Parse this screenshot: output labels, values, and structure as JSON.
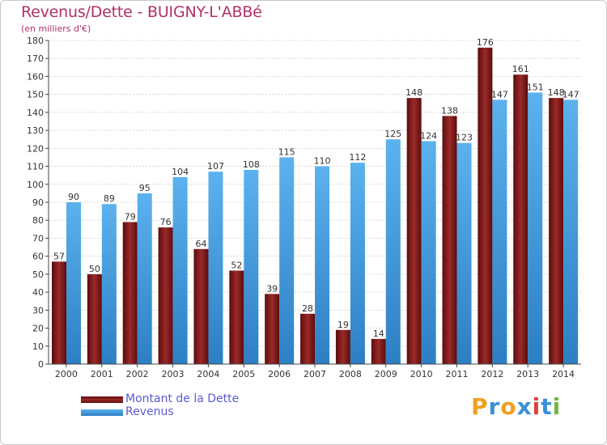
{
  "header": {
    "title": "Revenus/Dette - BUIGNY-L'ABBé",
    "subtitle": "(en milliers d'€)"
  },
  "legend": {
    "items": [
      {
        "label": "Montant de la Dette",
        "color": "#7a1a1a"
      },
      {
        "label": "Revenus",
        "color": "#4aa3e6"
      }
    ]
  },
  "logo": {
    "text": "Proxiti",
    "letters": [
      "P",
      "r",
      "o",
      "x",
      "i",
      "t",
      "i"
    ],
    "colors": [
      "#f0a020",
      "#3a8fd8",
      "#f0a020",
      "#3a8fd8",
      "#e04040",
      "#3a8fd8",
      "#70b840"
    ]
  },
  "chart_data": {
    "type": "bar",
    "title": "Revenus/Dette - BUIGNY-L'ABBé",
    "ylabel": "(en milliers d'€)",
    "xlabel": "",
    "categories": [
      "2000",
      "2001",
      "2002",
      "2003",
      "2004",
      "2005",
      "2006",
      "2007",
      "2008",
      "2009",
      "2010",
      "2011",
      "2012",
      "2013",
      "2014"
    ],
    "series": [
      {
        "name": "Montant de la Dette",
        "color": "#7a1a1a",
        "values": [
          57,
          50,
          79,
          76,
          64,
          52,
          39,
          28,
          19,
          14,
          148,
          138,
          176,
          161,
          148
        ]
      },
      {
        "name": "Revenus",
        "color": "#4aa3e6",
        "values": [
          90,
          89,
          95,
          104,
          107,
          108,
          115,
          110,
          112,
          125,
          124,
          123,
          147,
          151,
          147
        ]
      }
    ],
    "ylim": [
      0,
      180
    ],
    "ytick_step": 10,
    "grid": true,
    "legend_position": "bottom-left"
  }
}
